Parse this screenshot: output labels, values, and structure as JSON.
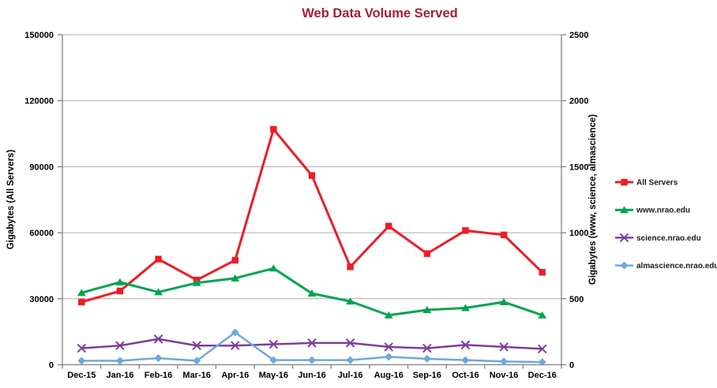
{
  "chart_data": {
    "type": "line",
    "title": "Web Data Volume Served",
    "title_color": "#A51E36",
    "categories": [
      "Dec-15",
      "Jan-16",
      "Feb-16",
      "Mar-16",
      "Apr-16",
      "May-16",
      "Jun-16",
      "Jul-16",
      "Aug-16",
      "Sep-16",
      "Oct-16",
      "Nov-16",
      "Dec-16"
    ],
    "left_axis": {
      "label": "Gigabytes (All Servers)",
      "min": 0,
      "max": 150000,
      "ticks": [
        0,
        30000,
        60000,
        90000,
        120000,
        150000
      ]
    },
    "right_axis": {
      "label": "Gigabytes (www, science, almascience)",
      "min": 0,
      "max": 2500,
      "ticks": [
        0,
        500,
        1000,
        1500,
        2000,
        2500
      ]
    },
    "grid": true,
    "legend_position": "right",
    "series": [
      {
        "name": "All Servers",
        "axis": "left",
        "color": "#EE1C25",
        "marker": "square",
        "line_width": 3,
        "values": [
          28500,
          33500,
          48000,
          38500,
          47500,
          107000,
          86000,
          44500,
          63000,
          50500,
          61000,
          59000,
          42000
        ]
      },
      {
        "name": "www.nrao.edu",
        "axis": "right",
        "color": "#00A550",
        "marker": "triangle",
        "line_width": 3,
        "values": [
          545,
          625,
          550,
          620,
          655,
          730,
          540,
          480,
          375,
          415,
          430,
          475,
          375
        ]
      },
      {
        "name": "science.nrao.edu",
        "axis": "right",
        "color": "#7B3F9B",
        "marker": "x",
        "line_width": 2.5,
        "values": [
          125,
          145,
          195,
          145,
          145,
          155,
          165,
          165,
          135,
          125,
          150,
          135,
          120
        ]
      },
      {
        "name": "almascience.nrao.edu",
        "axis": "right",
        "color": "#6FA8DC",
        "marker": "diamond",
        "line_width": 2.5,
        "values": [
          30,
          30,
          50,
          30,
          245,
          35,
          35,
          35,
          60,
          45,
          35,
          25,
          20
        ]
      }
    ],
    "colors": {
      "grid": "#ADADAD",
      "axis": "#808080",
      "tick_text": "#000000",
      "legend_text": "#1A1A1A"
    }
  }
}
